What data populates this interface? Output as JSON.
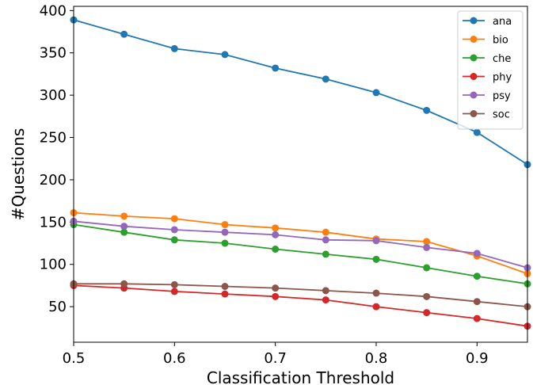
{
  "chart_data": {
    "type": "line",
    "xlabel": "Classification Threshold",
    "ylabel": "#Questions",
    "xlim": [
      0.5,
      0.95
    ],
    "ylim": [
      8,
      405
    ],
    "x_ticks": [
      0.5,
      0.6,
      0.7,
      0.8,
      0.9
    ],
    "x_tick_labels": [
      "0.5",
      "0.6",
      "0.7",
      "0.8",
      "0.9"
    ],
    "y_ticks": [
      50,
      100,
      150,
      200,
      250,
      300,
      350,
      400
    ],
    "y_tick_labels": [
      "50",
      "100",
      "150",
      "200",
      "250",
      "300",
      "350",
      "400"
    ],
    "grid": false,
    "legend_position": "top-right",
    "x": [
      0.5,
      0.55,
      0.6,
      0.65,
      0.7,
      0.75,
      0.8,
      0.85,
      0.9,
      0.95
    ],
    "series": [
      {
        "name": "ana",
        "color": "#1f77b4",
        "values": [
          389,
          372,
          355,
          348,
          332,
          319,
          303,
          282,
          256,
          218
        ]
      },
      {
        "name": "bio",
        "color": "#ff7f0e",
        "values": [
          161,
          157,
          154,
          147,
          143,
          138,
          130,
          127,
          110,
          89
        ]
      },
      {
        "name": "che",
        "color": "#2ca02c",
        "values": [
          147,
          138,
          129,
          125,
          118,
          112,
          106,
          96,
          86,
          77
        ]
      },
      {
        "name": "phy",
        "color": "#d62728",
        "values": [
          75,
          72,
          68,
          65,
          62,
          58,
          50,
          43,
          36,
          27
        ]
      },
      {
        "name": "psy",
        "color": "#9467bd",
        "values": [
          151,
          145,
          141,
          138,
          135,
          129,
          128,
          120,
          113,
          96
        ]
      },
      {
        "name": "soc",
        "color": "#8c564b",
        "values": [
          77,
          77,
          76,
          74,
          72,
          69,
          66,
          62,
          56,
          50
        ]
      }
    ]
  }
}
